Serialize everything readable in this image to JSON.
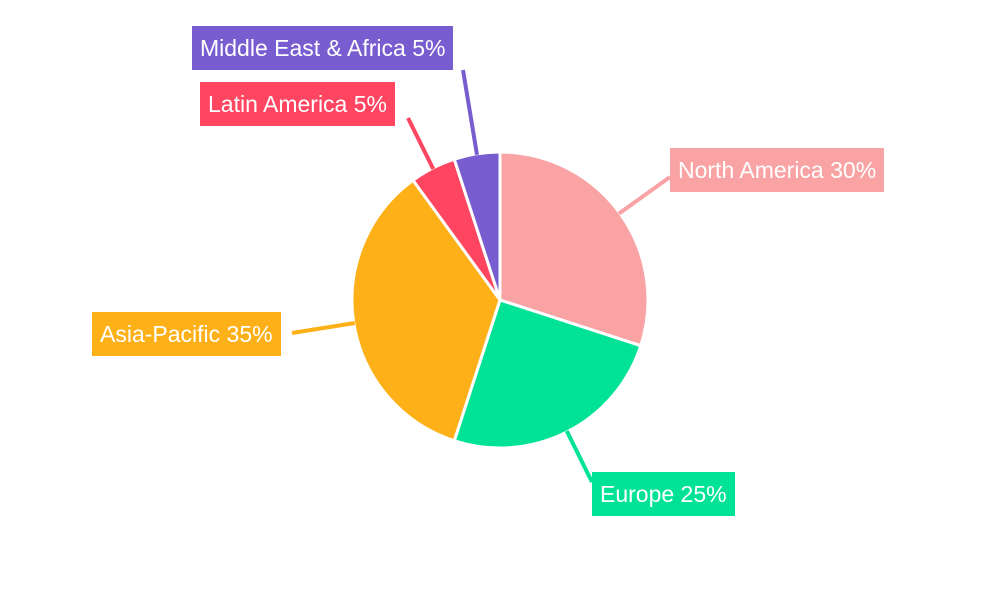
{
  "chart_data": {
    "type": "pie",
    "title": "",
    "start": "top",
    "direction": "clockwise",
    "slices": [
      {
        "label": "North America 30%",
        "name": "North America",
        "value": 30,
        "color": "#F9A3A4"
      },
      {
        "label": "Europe 25%",
        "name": "Europe",
        "value": 25,
        "color": "#00E396"
      },
      {
        "label": "Asia-Pacific 35%",
        "name": "Asia-Pacific",
        "value": 35,
        "color": "#FEB019"
      },
      {
        "label": "Latin America 5%",
        "name": "Latin America",
        "value": 5,
        "color": "#FF4560"
      },
      {
        "label": "Middle East & Africa 5%",
        "name": "Middle East & Africa",
        "value": 5,
        "color": "#775DD0"
      }
    ]
  }
}
